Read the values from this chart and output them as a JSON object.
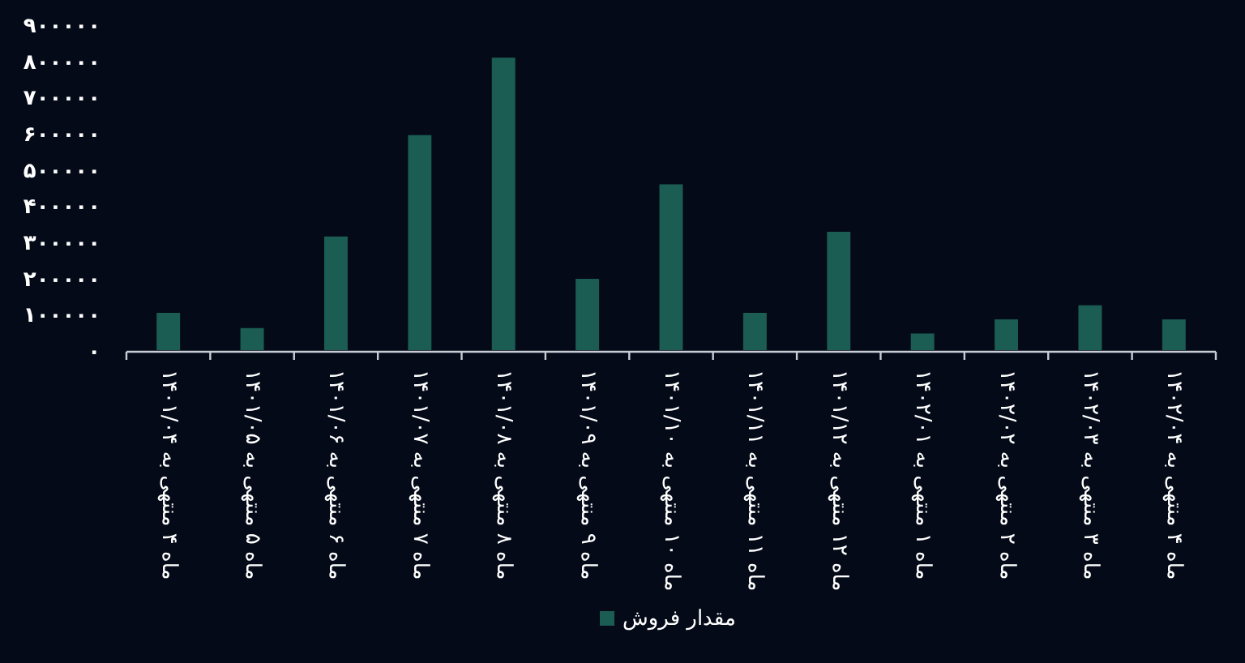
{
  "chart_data": {
    "type": "bar",
    "categories": [
      "ماه ۴ منتهی به ۱۴۰۱/۰۴",
      "ماه ۵ منتهی به ۱۴۰۱/۰۵",
      "ماه ۶ منتهی به ۱۴۰۱/۰۶",
      "ماه ۷ منتهی به ۱۴۰۱/۰۷",
      "ماه ۸ منتهی به ۱۴۰۱/۰۸",
      "ماه ۹ منتهی به ۱۴۰۱/۰۹",
      "ماه ۱۰ منتهی به ۱۴۰۱/۱۰",
      "ماه ۱۱ منتهی به ۱۴۰۱/۱۱",
      "ماه ۱۲ منتهی به ۱۴۰۱/۱۲",
      "ماه ۱ منتهی به ۱۴۰۲/۰۱",
      "ماه ۲ منتهی به ۱۴۰۲/۰۲",
      "ماه ۳ منتهی به ۱۴۰۲/۰۳",
      "ماه ۴ منتهی به ۱۴۰۲/۰۴"
    ],
    "series": [
      {
        "name": "مقدار فروش",
        "color": "#1b5c53",
        "values": [
          103000,
          61000,
          314000,
          594000,
          808000,
          197000,
          458000,
          103000,
          327000,
          46000,
          85000,
          124000,
          85000
        ]
      }
    ],
    "ylim": [
      0,
      900000
    ],
    "yticks": [
      {
        "value": 0,
        "label": "۰"
      },
      {
        "value": 100000,
        "label": "۱۰۰۰۰۰"
      },
      {
        "value": 200000,
        "label": "۲۰۰۰۰۰"
      },
      {
        "value": 300000,
        "label": "۳۰۰۰۰۰"
      },
      {
        "value": 400000,
        "label": "۴۰۰۰۰۰"
      },
      {
        "value": 500000,
        "label": "۵۰۰۰۰۰"
      },
      {
        "value": 600000,
        "label": "۶۰۰۰۰۰"
      },
      {
        "value": 700000,
        "label": "۷۰۰۰۰۰"
      },
      {
        "value": 800000,
        "label": "۸۰۰۰۰۰"
      },
      {
        "value": 900000,
        "label": "۹۰۰۰۰۰"
      }
    ],
    "grid": false,
    "legend": "bottom"
  }
}
